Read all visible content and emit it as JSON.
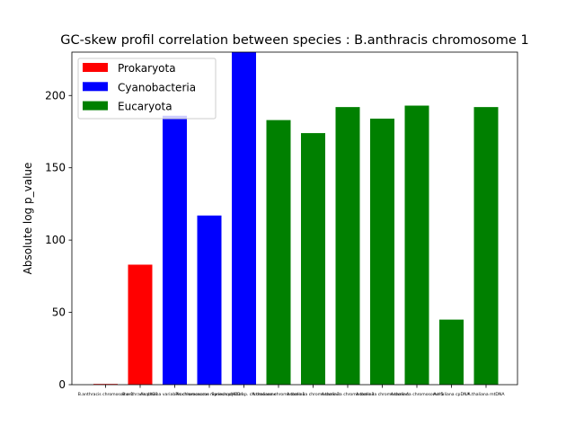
{
  "chart_data": {
    "type": "bar",
    "title": "GC-skew profil correlation between species : B.anthracis chromosome 1",
    "xlabel": "",
    "ylabel": "Absolute log p_value",
    "ylim": [
      0,
      230
    ],
    "yticks": [
      0,
      50,
      100,
      150,
      200
    ],
    "grid": false,
    "legend_position": "top-left",
    "categories": [
      "B.anthracis chromosome 1",
      "B.anthracis pXO1",
      "Anabaena variabilis chromosome",
      "Prochlorococcus marinus pMED4",
      "Synechocystis sp. chromosome",
      "A.thaliana chromosome 1",
      "A.thaliana chromosome 2",
      "A.thaliana chromosome 3",
      "A.thaliana chromosome 4",
      "A.thaliana chromosome 5",
      "A.thaliana cpDNA",
      "A.thaliana mtDNA"
    ],
    "values": [
      0.5,
      83,
      186,
      117,
      230,
      183,
      174,
      192,
      184,
      193,
      45,
      192
    ],
    "groups": [
      "Prokaryota",
      "Prokaryota",
      "Cyanobacteria",
      "Cyanobacteria",
      "Cyanobacteria",
      "Eucaryota",
      "Eucaryota",
      "Eucaryota",
      "Eucaryota",
      "Eucaryota",
      "Eucaryota",
      "Eucaryota"
    ],
    "legend": [
      {
        "name": "Prokaryota",
        "color": "#ff0000"
      },
      {
        "name": "Cyanobacteria",
        "color": "#0000ff"
      },
      {
        "name": "Eucaryota",
        "color": "#008000"
      }
    ]
  }
}
